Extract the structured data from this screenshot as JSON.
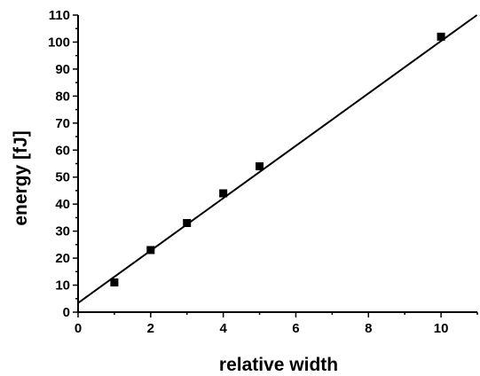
{
  "chart_data": {
    "type": "scatter",
    "title": "",
    "xlabel": "relative width",
    "ylabel": "energy [fJ]",
    "xlim": [
      0,
      11
    ],
    "ylim": [
      0,
      110
    ],
    "x_ticks": [
      0,
      2,
      4,
      6,
      8,
      10
    ],
    "x_minor_step": 1,
    "y_ticks": [
      0,
      10,
      20,
      30,
      40,
      50,
      60,
      70,
      80,
      90,
      100,
      110
    ],
    "y_minor_step": 5,
    "grid": false,
    "series": [
      {
        "marker": "square",
        "color": "#000000",
        "x": [
          1,
          2,
          3,
          4,
          5,
          10
        ],
        "y": [
          11,
          23,
          33,
          44,
          54,
          102
        ]
      }
    ],
    "fit_line": {
      "type": "linear",
      "color": "#000000",
      "slope": 9.7,
      "intercept": 3.4
    }
  }
}
